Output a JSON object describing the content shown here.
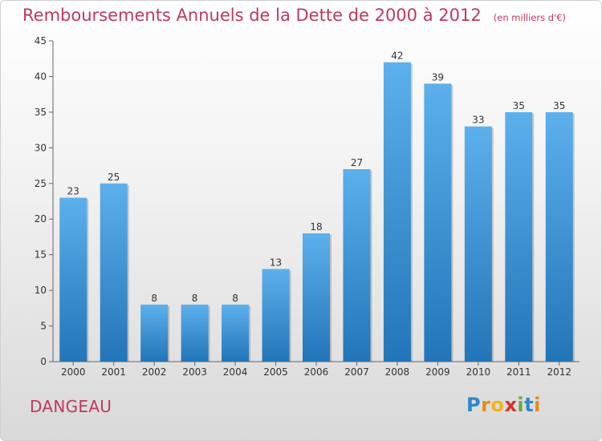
{
  "chart_data": {
    "type": "bar",
    "title": "Remboursements Annuels de la Dette de 2000 à 2012",
    "subtitle": "(en milliers d'€)",
    "xlabel": "",
    "ylabel": "",
    "categories": [
      "2000",
      "2001",
      "2002",
      "2003",
      "2004",
      "2005",
      "2006",
      "2007",
      "2008",
      "2009",
      "2010",
      "2011",
      "2012"
    ],
    "values": [
      23,
      25,
      8,
      8,
      8,
      13,
      18,
      27,
      42,
      39,
      33,
      35,
      35
    ],
    "data_labels": [
      "23",
      "25",
      "8",
      "8",
      "8",
      "13",
      "18",
      "27",
      "42",
      "39",
      "33",
      "35",
      "35"
    ],
    "ylim": [
      0,
      45
    ],
    "yticks": [
      0,
      5,
      10,
      15,
      20,
      25,
      30,
      35,
      40,
      45
    ],
    "grid": false,
    "legend": "none",
    "bar_color": "#3a8fd5"
  },
  "footer": {
    "place_name": "DANGEAU",
    "logo_text": "Proxiti",
    "logo_letters": [
      {
        "char": "P",
        "color": "#2e87c8"
      },
      {
        "char": "r",
        "color": "#e88a1a"
      },
      {
        "char": "o",
        "color": "#f1b31c"
      },
      {
        "char": "x",
        "color": "#d8322c"
      },
      {
        "char": "i",
        "color": "#6aa842"
      },
      {
        "char": "t",
        "color": "#2e87c8"
      },
      {
        "char": "i",
        "color": "#e88a1a"
      }
    ]
  }
}
